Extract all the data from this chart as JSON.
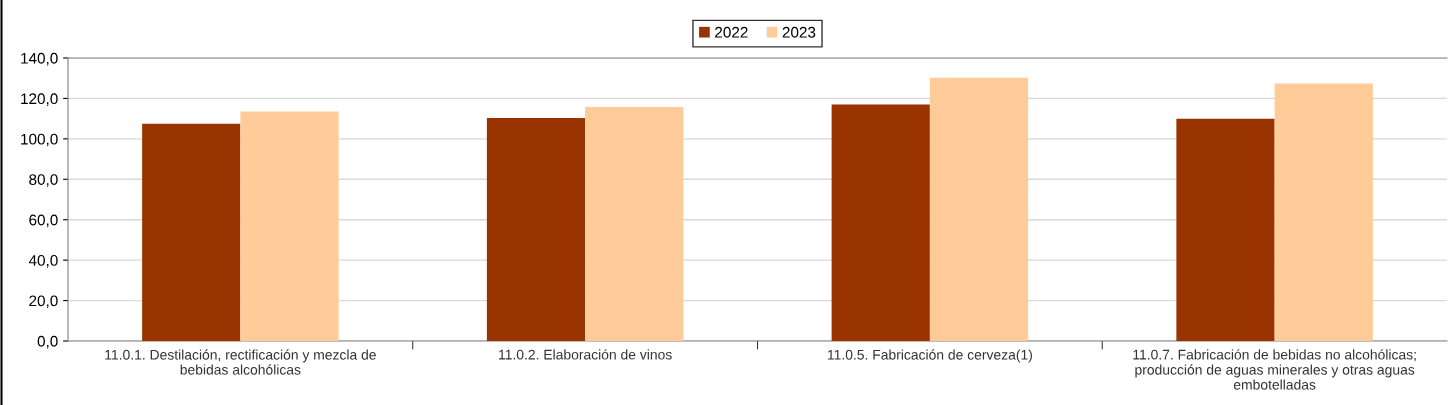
{
  "chart_data": {
    "type": "bar",
    "categories": [
      "11.0.1. Destilación, rectificación y mezcla de\nbebidas alcohólicas",
      "11.0.2. Elaboración de vinos",
      "11.0.5. Fabricación de cerveza(1)",
      "11.0.7. Fabricación de bebidas no alcohólicas;\nproducción de aguas minerales y otras aguas\nembotelladas"
    ],
    "series": [
      {
        "name": "2022",
        "color": "#993300",
        "values": [
          107.5,
          110.3,
          117.0,
          109.9
        ]
      },
      {
        "name": "2023",
        "color": "#ffcc99",
        "values": [
          113.5,
          115.8,
          130.2,
          127.4
        ]
      }
    ],
    "ylim": [
      0,
      140
    ],
    "yticks": [
      {
        "value": 0,
        "label": "0,0"
      },
      {
        "value": 20,
        "label": "20,0"
      },
      {
        "value": 40,
        "label": "40,0"
      },
      {
        "value": 60,
        "label": "60,0"
      },
      {
        "value": 80,
        "label": "80,0"
      },
      {
        "value": 100,
        "label": "100,0"
      },
      {
        "value": 120,
        "label": "120,0"
      },
      {
        "value": 140,
        "label": "140,0"
      }
    ],
    "grid": "y",
    "legend": "top"
  }
}
